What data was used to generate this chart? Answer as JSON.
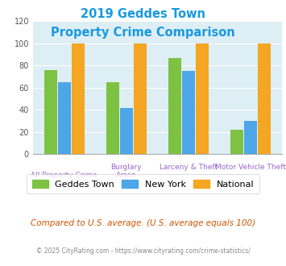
{
  "title_line1": "2019 Geddes Town",
  "title_line2": "Property Crime Comparison",
  "title_color": "#1899e0",
  "geddes_values": [
    76,
    65,
    87,
    22
  ],
  "newyork_values": [
    65,
    42,
    75,
    30
  ],
  "national_values": [
    100,
    100,
    100,
    100
  ],
  "geddes_color": "#7dc243",
  "newyork_color": "#4da6e8",
  "national_color": "#f5a623",
  "ylim": [
    0,
    120
  ],
  "yticks": [
    0,
    20,
    40,
    60,
    80,
    100,
    120
  ],
  "background_color": "#ddeef4",
  "legend_labels": [
    "Geddes Town",
    "New York",
    "National"
  ],
  "label_color": "#9966cc",
  "top_labels": [
    "",
    "Burglary",
    "Larceny & Theft",
    "Motor Vehicle Theft"
  ],
  "bottom_labels": [
    "All Property Crime",
    "Arson",
    "",
    ""
  ],
  "footnote1": "Compared to U.S. average. (U.S. average equals 100)",
  "footnote2": "© 2025 CityRating.com - https://www.cityrating.com/crime-statistics/",
  "footnote1_color": "#cc5500",
  "footnote2_color": "#888888"
}
